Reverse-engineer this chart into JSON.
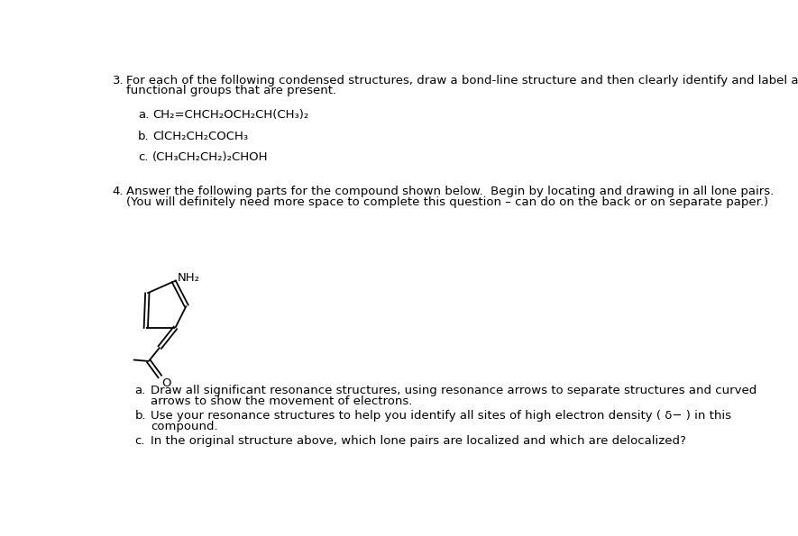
{
  "background": "#ffffff",
  "q3_number": "3.",
  "q3_text_line1": "For each of the following condensed structures, draw a bond-line structure and then clearly identify and label all",
  "q3_text_line2": "functional groups that are present.",
  "q3a_label": "a.",
  "q3a_formula": "CH₂=CHCH₂OCH₂CH(CH₃)₂",
  "q3b_label": "b.",
  "q3b_formula": "ClCH₂CH₂COCH₃",
  "q3c_label": "c.",
  "q3c_formula": "(CH₃CH₂CH₂)₂CHOH",
  "q4_number": "4.",
  "q4_text_line1": "Answer the following parts for the compound shown below.  Begin by locating and drawing in all lone pairs.",
  "q4_text_line2": "(You will definitely need more space to complete this question – can do on the back or on separate paper.)",
  "q4a_label": "a.",
  "q4a_text": "Draw all significant resonance structures, using resonance arrows to separate structures and curved",
  "q4a_text2": "arrows to show the movement of electrons.",
  "q4b_label": "b.",
  "q4b_text": "Use your resonance structures to help you identify all sites of high electron density ( δ− ) in this",
  "q4b_text2": "compound.",
  "q4c_label": "c.",
  "q4c_text": "In the original structure above, which lone pairs are localized and which are delocalized?",
  "fs": 9.5,
  "fs_formula": 9.5
}
